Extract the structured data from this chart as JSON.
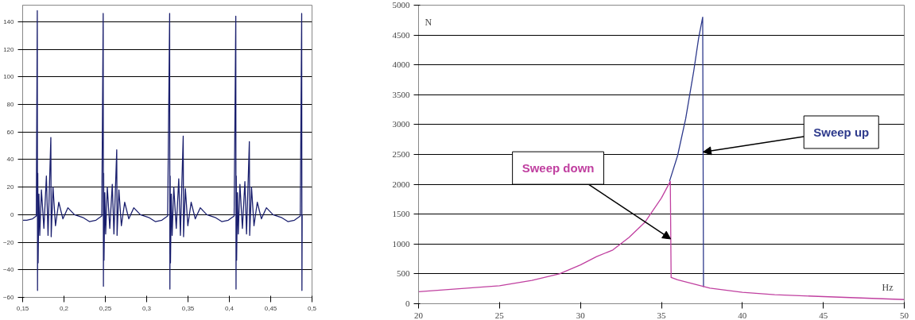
{
  "chart_data": [
    {
      "type": "line",
      "color": "#1a1f6e",
      "grid": "y",
      "xlim": [
        0.15,
        0.5
      ],
      "ylim": [
        -60,
        152
      ],
      "xticks": [
        {
          "value": 0.15,
          "label": "0,15"
        },
        {
          "value": 0.2,
          "label": "0,2"
        },
        {
          "value": 0.25,
          "label": "0,25"
        },
        {
          "value": 0.3,
          "label": "0,3"
        },
        {
          "value": 0.35,
          "label": "0,35"
        },
        {
          "value": 0.4,
          "label": "0,4"
        },
        {
          "value": 0.45,
          "label": "0,45"
        },
        {
          "value": 0.5,
          "label": "0,5"
        }
      ],
      "yticks": [
        -60,
        -40,
        -20,
        0,
        20,
        40,
        60,
        80,
        100,
        120,
        140
      ],
      "x": [
        0.15,
        0.155,
        0.162,
        0.1665,
        0.1677,
        0.168,
        0.1683,
        0.1687,
        0.1697,
        0.1707,
        0.1727,
        0.1757,
        0.1787,
        0.1807,
        0.1841,
        0.1845,
        0.1867,
        0.1897,
        0.1937,
        0.1987,
        0.2047,
        0.2127,
        0.2227,
        0.2307,
        0.2387,
        0.2457,
        0.2474,
        0.2477,
        0.248,
        0.2484,
        0.2494,
        0.2504,
        0.2524,
        0.2554,
        0.2584,
        0.2604,
        0.2638,
        0.2642,
        0.2664,
        0.2694,
        0.2734,
        0.2784,
        0.2844,
        0.2924,
        0.3024,
        0.3104,
        0.3184,
        0.3254,
        0.3278,
        0.3281,
        0.3284,
        0.3288,
        0.3298,
        0.3308,
        0.3328,
        0.3358,
        0.3388,
        0.3408,
        0.3442,
        0.3446,
        0.3468,
        0.3498,
        0.3538,
        0.3588,
        0.3648,
        0.3728,
        0.3828,
        0.3908,
        0.3988,
        0.4058,
        0.4078,
        0.4081,
        0.4084,
        0.4088,
        0.4098,
        0.4108,
        0.4128,
        0.4158,
        0.4188,
        0.4208,
        0.4242,
        0.4246,
        0.4268,
        0.4298,
        0.4338,
        0.4388,
        0.4448,
        0.4528,
        0.4628,
        0.4708,
        0.4788,
        0.4858,
        0.4875,
        0.4878,
        0.4881
      ],
      "values": [
        -4,
        -4,
        -3,
        -1,
        148,
        -55,
        30,
        -35,
        15,
        -15,
        18,
        -10,
        28,
        -15,
        56,
        -16,
        20,
        -8,
        9,
        -3,
        5,
        0,
        -2,
        -5,
        -4,
        -1,
        146,
        -52,
        30,
        -33,
        16,
        -14,
        20,
        -10,
        22,
        -14,
        47,
        -15,
        18,
        -8,
        9,
        -3,
        5,
        0,
        -2,
        -5,
        -4,
        -1,
        146,
        -54,
        28,
        -35,
        15,
        -15,
        20,
        -10,
        26,
        -15,
        57,
        -16,
        19,
        -8,
        9,
        -3,
        5,
        0,
        -2,
        -5,
        -4,
        -1,
        144,
        -54,
        28,
        -33,
        16,
        -14,
        22,
        -10,
        24,
        -14,
        53,
        -15,
        20,
        -8,
        9,
        -3,
        5,
        0,
        -2,
        -5,
        -4,
        -1,
        146,
        -55,
        0
      ]
    },
    {
      "type": "line",
      "grid": "y",
      "xlabel": "Hz",
      "ylabel": "N",
      "xlim": [
        20,
        50
      ],
      "ylim": [
        0,
        5000
      ],
      "xticks": [
        20,
        25,
        30,
        35,
        40,
        45,
        50
      ],
      "yticks": [
        0,
        500,
        1000,
        1500,
        2000,
        2500,
        3000,
        3500,
        4000,
        4500,
        5000
      ],
      "series": [
        {
          "name": "Sweep up",
          "color": "#2e3a8c",
          "x": [
            35.5,
            36,
            36.5,
            37,
            37.3,
            37.55,
            37.6
          ],
          "values": [
            2050,
            2480,
            3100,
            3900,
            4450,
            4800,
            280
          ]
        },
        {
          "name": "Sweep down",
          "color": "#c040a0",
          "x": [
            50,
            48,
            45,
            42,
            40,
            38,
            37,
            36,
            35.6,
            35.55,
            35,
            34,
            33,
            32,
            31,
            30,
            28.7,
            27,
            25,
            22,
            20
          ],
          "values": [
            70,
            90,
            120,
            150,
            190,
            260,
            330,
            400,
            440,
            2050,
            1770,
            1370,
            1110,
            900,
            790,
            650,
            500,
            390,
            300,
            240,
            200
          ]
        }
      ]
    }
  ]
}
